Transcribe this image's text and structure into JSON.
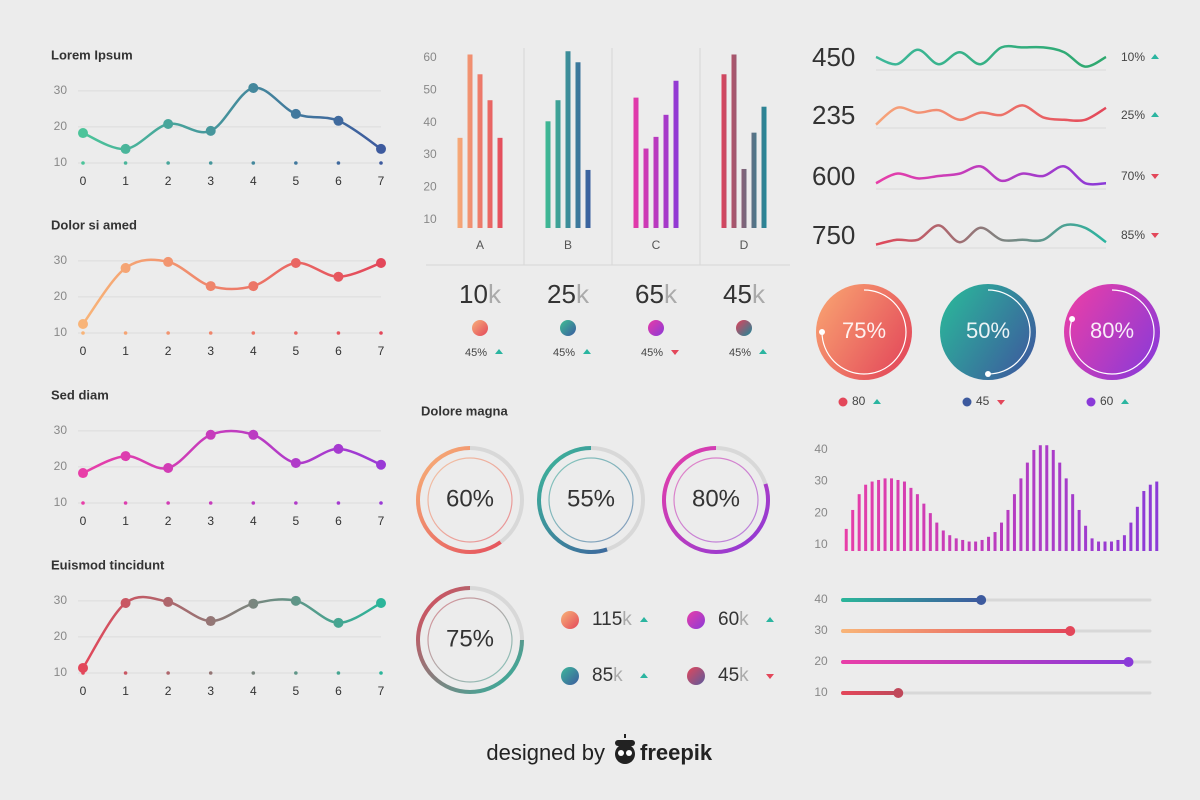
{
  "chart_data": [
    {
      "type": "line",
      "title": "Lorem Ipsum",
      "x": [
        0,
        1,
        2,
        3,
        4,
        5,
        6,
        7
      ],
      "xlim": [
        0,
        7
      ],
      "xticks": [
        0,
        1,
        2,
        3,
        4,
        5,
        6,
        7
      ],
      "ylim": [
        10,
        33
      ],
      "yticks": [
        10,
        20,
        30
      ],
      "grid": true,
      "series": [
        {
          "values": [
            18.3,
            13.9,
            20.8,
            18.9,
            30.8,
            23.6,
            21.7,
            13.9
          ],
          "colors": [
            "#4cc49a",
            "#3d5a9e"
          ]
        }
      ]
    },
    {
      "type": "line",
      "title": "Dolor si amed",
      "x": [
        0,
        1,
        2,
        3,
        4,
        5,
        6,
        7
      ],
      "xlim": [
        0,
        7
      ],
      "xticks": [
        0,
        1,
        2,
        3,
        4,
        5,
        6,
        7
      ],
      "ylim": [
        10,
        33
      ],
      "yticks": [
        10,
        20,
        30
      ],
      "grid": true,
      "series": [
        {
          "values": [
            12.5,
            28,
            29.7,
            23,
            23,
            29.4,
            25.6,
            29.4
          ],
          "colors": [
            "#f8b478",
            "#e3475a"
          ]
        }
      ]
    },
    {
      "type": "line",
      "title": "Sed diam",
      "x": [
        0,
        1,
        2,
        3,
        4,
        5,
        6,
        7
      ],
      "xlim": [
        0,
        7
      ],
      "xticks": [
        0,
        1,
        2,
        3,
        4,
        5,
        6,
        7
      ],
      "ylim": [
        10,
        33
      ],
      "yticks": [
        10,
        20,
        30
      ],
      "grid": true,
      "series": [
        {
          "values": [
            18.3,
            23,
            19.7,
            28.9,
            28.9,
            21.1,
            25,
            20.6
          ],
          "colors": [
            "#e83ea8",
            "#9a3ad6"
          ]
        }
      ]
    },
    {
      "type": "line",
      "title": "Euismod tincidunt",
      "x": [
        0,
        1,
        2,
        3,
        4,
        5,
        6,
        7
      ],
      "xlim": [
        0,
        7
      ],
      "xticks": [
        0,
        1,
        2,
        3,
        4,
        5,
        6,
        7
      ],
      "ylim": [
        10,
        33
      ],
      "yticks": [
        10,
        20,
        30
      ],
      "grid": true,
      "series": [
        {
          "values": [
            11.4,
            29.4,
            29.7,
            24.4,
            29.2,
            30,
            23.9,
            29.4
          ],
          "colors": [
            "#e3475a",
            "#2bb59a"
          ]
        }
      ]
    },
    {
      "type": "bar",
      "categories": [
        "A",
        "B",
        "C",
        "D"
      ],
      "ylim": [
        7.5,
        63
      ],
      "yticks": [
        10,
        20,
        30,
        40,
        50,
        60
      ],
      "series": [
        {
          "values": [
            35.3,
            40.4,
            47.7,
            54.9
          ]
        },
        {
          "values": [
            61,
            46.9,
            32,
            61
          ]
        },
        {
          "values": [
            54.9,
            62,
            35.6,
            25.7
          ]
        },
        {
          "values": [
            46.9,
            58.6,
            42.4,
            36.9
          ]
        },
        {
          "values": [
            35.3,
            25.4,
            52.9,
            44.9
          ]
        }
      ],
      "category_colors": [
        [
          "#f7b07a",
          "#e3475a"
        ],
        [
          "#3fbf93",
          "#3a5aa0"
        ],
        [
          "#e83aa6",
          "#8a3ad8"
        ],
        [
          "#e3405a",
          "#1a8a9a"
        ]
      ],
      "kpis": [
        {
          "value": "10",
          "unit": "k",
          "change": "45%",
          "trend": "up"
        },
        {
          "value": "25",
          "unit": "k",
          "change": "45%",
          "trend": "up"
        },
        {
          "value": "65",
          "unit": "k",
          "change": "45%",
          "trend": "down"
        },
        {
          "value": "45",
          "unit": "k",
          "change": "45%",
          "trend": "up"
        }
      ]
    },
    {
      "type": "sparkline",
      "items": [
        {
          "label": "450",
          "change": "10%",
          "trend": "up",
          "values": [
            5,
            2,
            8,
            2,
            7,
            2,
            9,
            9,
            9,
            7,
            1,
            5
          ],
          "colors": [
            "#3db89a",
            "#2ea86e"
          ]
        },
        {
          "label": "235",
          "change": "25%",
          "trend": "up",
          "values": [
            1,
            8,
            6,
            7,
            3,
            6,
            5,
            9,
            4,
            3,
            3,
            8
          ],
          "colors": [
            "#f7a57a",
            "#e3475a"
          ]
        },
        {
          "label": "600",
          "change": "70%",
          "trend": "down",
          "values": [
            2,
            6,
            4,
            5,
            6,
            9,
            3,
            6,
            5,
            9,
            2,
            2
          ],
          "colors": [
            "#e83ea8",
            "#8a3ad8"
          ]
        },
        {
          "label": "750",
          "change": "85%",
          "trend": "down",
          "values": [
            1,
            3,
            3,
            9,
            2,
            8,
            3,
            3,
            3,
            9,
            8,
            2
          ],
          "colors": [
            "#e3475a",
            "#2bb5a0"
          ]
        }
      ]
    },
    {
      "type": "gauge",
      "values": [
        75,
        50,
        80
      ],
      "value_labels": [
        "75%",
        "50%",
        "80%"
      ],
      "colors": [
        [
          "#f8a070",
          "#e3475a"
        ],
        [
          "#2bb59a",
          "#3d5a9e"
        ],
        [
          "#e83ea8",
          "#8a3ad8"
        ]
      ],
      "legend": [
        {
          "value": "80",
          "trend": "up"
        },
        {
          "value": "45",
          "trend": "down"
        },
        {
          "value": "60",
          "trend": "up"
        }
      ]
    },
    {
      "type": "ring",
      "title": "Dolore magna",
      "values": [
        60,
        55,
        80,
        75
      ],
      "value_labels": [
        "60%",
        "55%",
        "80%",
        "75%"
      ],
      "colors": [
        [
          "#f8b478",
          "#e3475a"
        ],
        [
          "#3db89a",
          "#3d5a9e"
        ],
        [
          "#e83ea8",
          "#8a3ad8"
        ],
        [
          "#e3475a",
          "#2bb5a0"
        ]
      ],
      "legend": [
        {
          "value": "115",
          "unit": "k",
          "trend": "up",
          "colors": [
            "#f8b478",
            "#e3475a"
          ]
        },
        {
          "value": "60",
          "unit": "k",
          "trend": "up",
          "colors": [
            "#e83ea8",
            "#8a3ad8"
          ]
        },
        {
          "value": "85",
          "unit": "k",
          "trend": "up",
          "colors": [
            "#3db89a",
            "#3d5a9e"
          ]
        },
        {
          "value": "45",
          "unit": "k",
          "trend": "down",
          "colors": [
            "#e3475a",
            "#5a5a9e"
          ]
        }
      ]
    },
    {
      "type": "bar",
      "ylim": [
        8,
        43
      ],
      "yticks": [
        10,
        20,
        30,
        40
      ],
      "colors": [
        "#e83ea8",
        "#8a3ad8"
      ],
      "values": [
        15,
        21,
        26,
        29,
        30,
        30.5,
        31,
        31,
        30.5,
        30,
        28,
        26,
        23,
        20,
        17,
        14.5,
        13,
        12,
        11.5,
        11,
        11,
        11.5,
        12.5,
        14,
        17,
        21,
        26,
        31,
        36,
        40,
        41.5,
        41.5,
        40,
        36,
        31,
        26,
        21,
        16,
        12,
        11,
        11,
        11,
        11.5,
        13,
        17,
        22,
        27,
        29,
        30
      ]
    },
    {
      "type": "hbar",
      "categories": [
        "40",
        "30",
        "20",
        "10"
      ],
      "values": [
        45,
        74,
        93,
        18
      ],
      "xlim": [
        0,
        100
      ],
      "colors": [
        [
          "#2bb59a",
          "#3d5a9e"
        ],
        [
          "#f8b478",
          "#e3475a"
        ],
        [
          "#e83ea8",
          "#8a3ad8"
        ],
        [
          "#e3475a",
          "#c0485a"
        ]
      ]
    }
  ],
  "footer": {
    "text": "designed by",
    "brand": "freepik"
  }
}
